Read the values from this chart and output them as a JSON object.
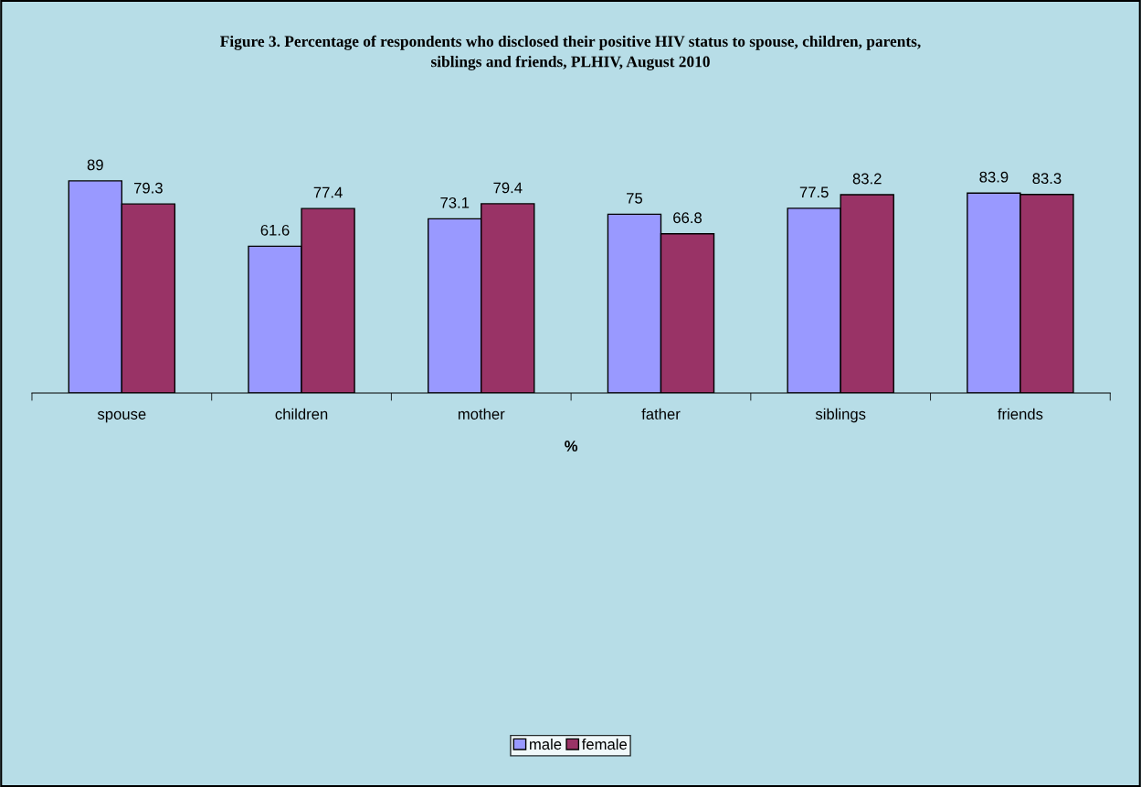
{
  "chart_data": {
    "type": "bar",
    "title": "Figure 3. Percentage of respondents who disclosed their positive HIV status to spouse, children, parents,\nsiblings and friends, PLHIV, August 2010",
    "xlabel": "%",
    "categories": [
      "spouse",
      "children",
      "mother",
      "father",
      "siblings",
      "friends"
    ],
    "series": [
      {
        "name": "male",
        "color": "#9999ff",
        "values": [
          89,
          61.6,
          73.1,
          75,
          77.5,
          83.9
        ]
      },
      {
        "name": "female",
        "color": "#993366",
        "values": [
          79.3,
          77.4,
          79.4,
          66.8,
          83.2,
          83.3
        ]
      }
    ],
    "data_labels": true,
    "grid": false,
    "legend": "bottom"
  }
}
